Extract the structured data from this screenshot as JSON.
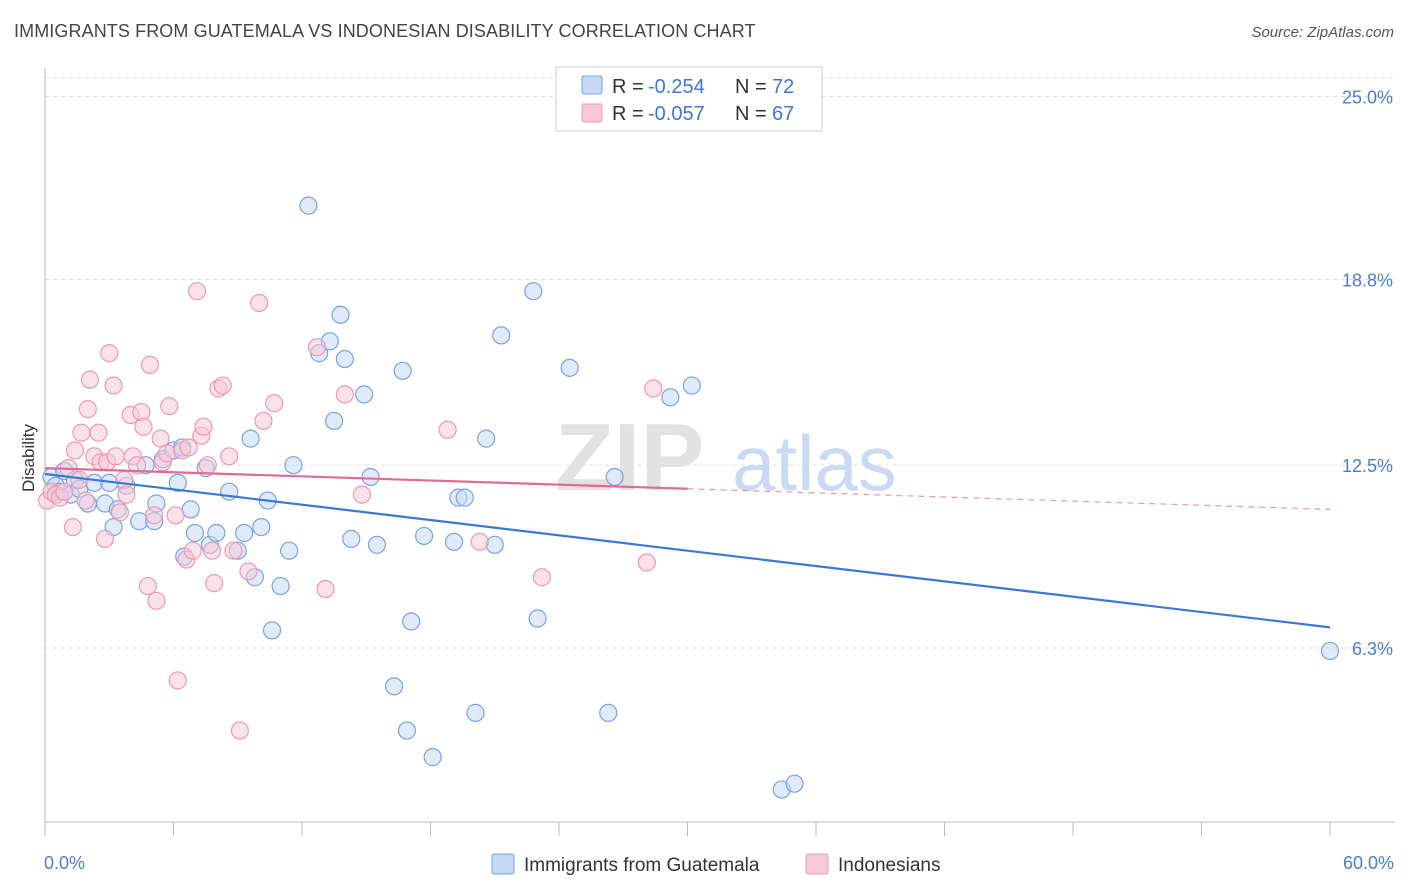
{
  "title": "IMMIGRANTS FROM GUATEMALA VS INDONESIAN DISABILITY CORRELATION CHART",
  "source": "Source: ZipAtlas.com",
  "watermark": {
    "zip": "ZIP",
    "atlas": "atlas"
  },
  "colors": {
    "blue": "#3b78d4",
    "blue_fill": "#c5d8f5",
    "blue_stroke": "#7ba3e0",
    "pink": "#e06b95",
    "pink_fill": "#f7c8d7",
    "pink_stroke": "#eb9ab5",
    "grid": "#dddddd",
    "tick_label": "#4a7fd0"
  },
  "legend": {
    "rows": [
      {
        "r_label": "R = ",
        "r_value": "-0.254",
        "n_label": "N = ",
        "n_value": "72"
      },
      {
        "r_label": "R = ",
        "r_value": "-0.057",
        "n_label": "N = ",
        "n_value": "67"
      }
    ]
  },
  "chart_data": {
    "type": "scatter",
    "xlabel": "",
    "ylabel": "Disability",
    "xlim": [
      0,
      60
    ],
    "ylim": [
      0.4,
      25.9
    ],
    "x_tick_labels": [
      "0.0%",
      "60.0%"
    ],
    "y_ticks": [
      6.3,
      12.5,
      18.8,
      25.0
    ],
    "y_tick_labels": [
      "6.3%",
      "12.5%",
      "18.8%",
      "25.0%"
    ],
    "grid": "horizontal dashed",
    "legend_placement": "top-center",
    "series": [
      {
        "name": "Immigrants from Guatemala",
        "color": "#3b78d4",
        "trend": {
          "x0": 0,
          "y0": 12.2,
          "x1": 60,
          "y1": 7.0,
          "dashed_from": null
        },
        "points": [
          [
            0.3,
            12.1
          ],
          [
            0.5,
            11.8
          ],
          [
            0.7,
            11.6
          ],
          [
            0.9,
            12.3
          ],
          [
            1.2,
            11.5
          ],
          [
            1.4,
            12.0
          ],
          [
            1.6,
            11.7
          ],
          [
            2.0,
            11.2
          ],
          [
            2.3,
            11.9
          ],
          [
            2.8,
            11.2
          ],
          [
            3.0,
            11.9
          ],
          [
            3.2,
            10.4
          ],
          [
            3.4,
            11.0
          ],
          [
            3.8,
            11.8
          ],
          [
            4.4,
            10.6
          ],
          [
            4.7,
            12.5
          ],
          [
            5.1,
            10.6
          ],
          [
            5.5,
            12.7
          ],
          [
            6.0,
            13.0
          ],
          [
            6.2,
            11.9
          ],
          [
            6.5,
            9.4
          ],
          [
            6.8,
            11.0
          ],
          [
            7.0,
            10.2
          ],
          [
            7.5,
            12.4
          ],
          [
            7.7,
            9.8
          ],
          [
            8.0,
            10.2
          ],
          [
            8.6,
            11.6
          ],
          [
            9.0,
            9.6
          ],
          [
            9.3,
            10.2
          ],
          [
            9.6,
            13.4
          ],
          [
            9.8,
            8.7
          ],
          [
            10.1,
            10.4
          ],
          [
            10.4,
            11.3
          ],
          [
            10.6,
            6.9
          ],
          [
            11.0,
            8.4
          ],
          [
            11.4,
            9.6
          ],
          [
            11.6,
            12.5
          ],
          [
            12.3,
            21.3
          ],
          [
            12.8,
            16.3
          ],
          [
            13.3,
            16.7
          ],
          [
            13.5,
            14.0
          ],
          [
            13.8,
            17.6
          ],
          [
            14.0,
            16.1
          ],
          [
            14.3,
            10.0
          ],
          [
            14.9,
            14.9
          ],
          [
            15.2,
            12.1
          ],
          [
            15.5,
            9.8
          ],
          [
            16.3,
            5.0
          ],
          [
            16.7,
            15.7
          ],
          [
            16.9,
            3.5
          ],
          [
            17.1,
            7.2
          ],
          [
            17.7,
            10.1
          ],
          [
            18.1,
            2.6
          ],
          [
            19.1,
            9.9
          ],
          [
            19.3,
            11.4
          ],
          [
            19.6,
            11.4
          ],
          [
            20.1,
            4.1
          ],
          [
            20.6,
            13.4
          ],
          [
            21.0,
            9.8
          ],
          [
            21.3,
            16.9
          ],
          [
            22.8,
            18.4
          ],
          [
            23.0,
            7.3
          ],
          [
            24.5,
            15.8
          ],
          [
            26.3,
            4.1
          ],
          [
            26.6,
            12.1
          ],
          [
            29.2,
            14.8
          ],
          [
            30.2,
            15.2
          ],
          [
            34.4,
            1.5
          ],
          [
            35.0,
            1.7
          ],
          [
            60.0,
            6.2
          ],
          [
            6.4,
            13.1
          ],
          [
            5.2,
            11.2
          ]
        ]
      },
      {
        "name": "Indonesians",
        "color": "#e06b95",
        "trend": {
          "x0": 0,
          "y0": 12.4,
          "x1": 60,
          "y1": 11.0,
          "dashed_from": 30
        },
        "points": [
          [
            0.1,
            11.3
          ],
          [
            0.3,
            11.6
          ],
          [
            0.5,
            11.5
          ],
          [
            0.7,
            11.4
          ],
          [
            0.9,
            11.6
          ],
          [
            1.1,
            12.4
          ],
          [
            1.3,
            10.4
          ],
          [
            1.4,
            13.0
          ],
          [
            1.6,
            12.0
          ],
          [
            1.7,
            13.6
          ],
          [
            1.9,
            11.3
          ],
          [
            2.0,
            14.4
          ],
          [
            2.1,
            15.4
          ],
          [
            2.3,
            12.8
          ],
          [
            2.5,
            13.6
          ],
          [
            2.6,
            12.6
          ],
          [
            2.8,
            10.0
          ],
          [
            2.9,
            12.6
          ],
          [
            3.0,
            16.3
          ],
          [
            3.2,
            15.2
          ],
          [
            3.3,
            12.8
          ],
          [
            3.5,
            10.9
          ],
          [
            3.7,
            12.0
          ],
          [
            3.8,
            11.5
          ],
          [
            4.0,
            14.2
          ],
          [
            4.1,
            12.8
          ],
          [
            4.3,
            12.5
          ],
          [
            4.5,
            14.3
          ],
          [
            4.6,
            13.8
          ],
          [
            4.8,
            8.4
          ],
          [
            4.9,
            15.9
          ],
          [
            5.1,
            10.8
          ],
          [
            5.2,
            7.9
          ],
          [
            5.4,
            13.4
          ],
          [
            5.5,
            12.6
          ],
          [
            5.7,
            12.9
          ],
          [
            5.8,
            14.5
          ],
          [
            6.1,
            10.8
          ],
          [
            6.2,
            5.2
          ],
          [
            6.4,
            13.0
          ],
          [
            6.6,
            9.3
          ],
          [
            6.7,
            13.1
          ],
          [
            6.9,
            9.6
          ],
          [
            7.1,
            18.4
          ],
          [
            7.3,
            13.5
          ],
          [
            7.4,
            13.8
          ],
          [
            7.6,
            12.5
          ],
          [
            7.8,
            9.6
          ],
          [
            7.9,
            8.5
          ],
          [
            8.1,
            15.1
          ],
          [
            8.3,
            15.2
          ],
          [
            8.6,
            12.8
          ],
          [
            8.8,
            9.6
          ],
          [
            9.1,
            3.5
          ],
          [
            9.5,
            8.9
          ],
          [
            10.0,
            18.0
          ],
          [
            10.2,
            14.0
          ],
          [
            10.7,
            14.6
          ],
          [
            12.7,
            16.5
          ],
          [
            13.1,
            8.3
          ],
          [
            14.0,
            14.9
          ],
          [
            14.8,
            11.5
          ],
          [
            18.8,
            13.7
          ],
          [
            20.3,
            9.9
          ],
          [
            23.2,
            8.7
          ],
          [
            28.1,
            9.2
          ],
          [
            28.4,
            15.1
          ]
        ]
      }
    ]
  },
  "bottom_legend": [
    {
      "label": "Immigrants from Guatemala",
      "series": 0
    },
    {
      "label": "Indonesians",
      "series": 1
    }
  ]
}
